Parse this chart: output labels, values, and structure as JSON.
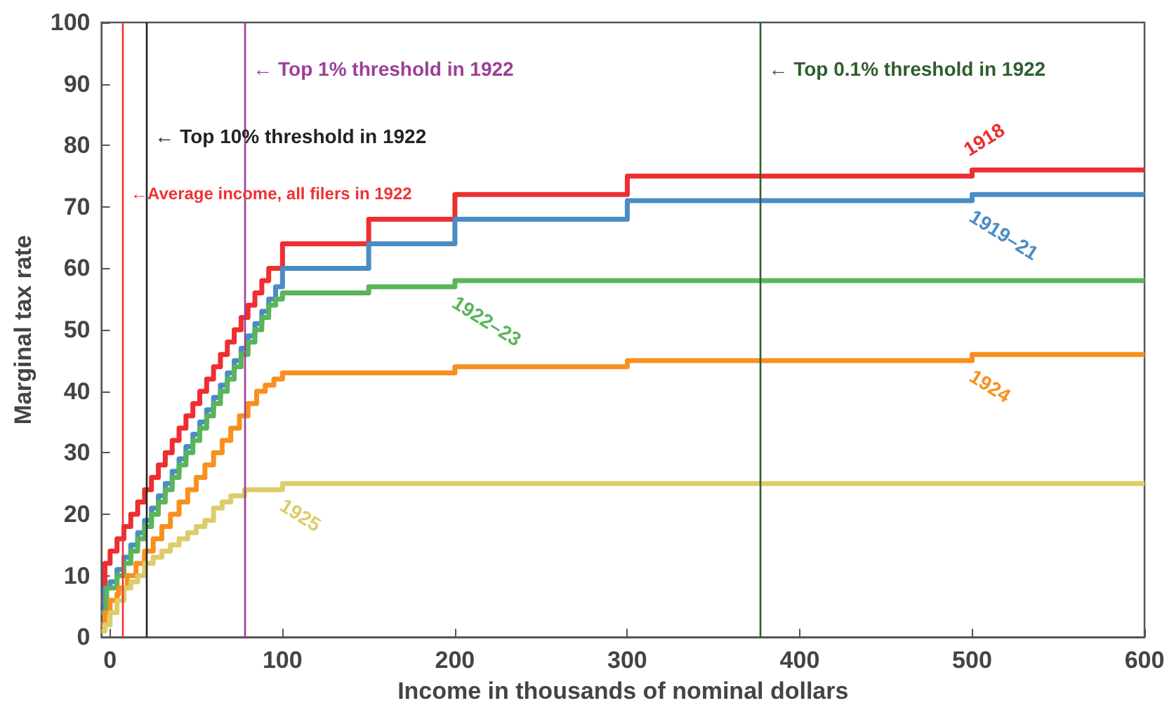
{
  "chart_data": {
    "type": "step",
    "xlabel": "Income in thousands of nominal dollars",
    "ylabel": "Marginal tax rate",
    "xlim": [
      -5,
      600
    ],
    "xticks": [
      0,
      100,
      200,
      300,
      400,
      500,
      600
    ],
    "ylim": [
      0,
      100
    ],
    "yticks": [
      0,
      10,
      20,
      30,
      40,
      50,
      60,
      70,
      80,
      90,
      100
    ],
    "grid": false,
    "line_style": "solid",
    "series": [
      {
        "name": "1918",
        "color": "#ee2e30",
        "x": [
          -5,
          -3,
          0,
          4,
          8,
          12,
          16,
          20,
          24,
          28,
          32,
          36,
          40,
          44,
          48,
          52,
          56,
          60,
          64,
          68,
          72,
          76,
          80,
          84,
          88,
          92,
          100,
          150,
          200,
          300,
          500,
          600
        ],
        "values": [
          6,
          12,
          14,
          16,
          18,
          20,
          22,
          24,
          26,
          28,
          30,
          32,
          34,
          36,
          38,
          40,
          42,
          44,
          46,
          48,
          50,
          52,
          54,
          56,
          58,
          60,
          64,
          68,
          72,
          75,
          76,
          76
        ]
      },
      {
        "name": "1919–21",
        "color": "#4a8cc4",
        "x": [
          -5,
          -3,
          0,
          4,
          8,
          12,
          16,
          20,
          24,
          28,
          32,
          36,
          40,
          44,
          48,
          52,
          56,
          60,
          64,
          68,
          72,
          76,
          80,
          84,
          88,
          92,
          96,
          100,
          150,
          200,
          300,
          500,
          600
        ],
        "values": [
          4,
          8,
          9,
          11,
          13,
          15,
          17,
          19,
          21,
          23,
          25,
          27,
          29,
          31,
          33,
          35,
          37,
          39,
          41,
          43,
          45,
          47,
          49,
          51,
          53,
          55,
          57,
          60,
          64,
          68,
          71,
          72,
          72
        ]
      },
      {
        "name": "1922–23",
        "color": "#5ab55a",
        "x": [
          -5,
          -2,
          0,
          4,
          8,
          12,
          16,
          20,
          24,
          28,
          32,
          36,
          40,
          44,
          48,
          52,
          56,
          60,
          64,
          68,
          72,
          76,
          80,
          84,
          88,
          92,
          96,
          100,
          150,
          200,
          600
        ],
        "values": [
          4,
          8,
          8,
          10,
          12,
          14,
          16,
          18,
          20,
          22,
          24,
          26,
          28,
          30,
          32,
          34,
          36,
          38,
          40,
          42,
          44,
          46,
          48,
          50,
          52,
          54,
          55,
          56,
          57,
          58,
          58
        ]
      },
      {
        "name": "1924",
        "color": "#f7901e",
        "x": [
          -5,
          -3,
          0,
          4,
          5,
          10,
          15,
          20,
          25,
          30,
          35,
          40,
          45,
          50,
          55,
          60,
          65,
          70,
          75,
          80,
          85,
          90,
          95,
          100,
          200,
          300,
          500,
          600
        ],
        "values": [
          2,
          4,
          6,
          7,
          8,
          10,
          12,
          14,
          16,
          18,
          20,
          22,
          24,
          26,
          28,
          30,
          32,
          34,
          36,
          38,
          40,
          41,
          42,
          43,
          44,
          45,
          46,
          46
        ]
      },
      {
        "name": "1925",
        "color": "#dccd6a",
        "x": [
          -5,
          -3,
          0,
          4,
          8,
          12,
          16,
          20,
          25,
          30,
          35,
          40,
          45,
          50,
          55,
          60,
          65,
          70,
          78,
          100,
          600
        ],
        "values": [
          1,
          2,
          4,
          6,
          8,
          9,
          10,
          12,
          13,
          14,
          15,
          16,
          17,
          18,
          19,
          21,
          22,
          23,
          24,
          25,
          25
        ]
      }
    ],
    "ref_lines": [
      {
        "axis": "x",
        "value": 7,
        "label": "←Average income, all filers in 1922",
        "color": "#ee3333"
      },
      {
        "axis": "x",
        "value": 21,
        "label": "← Top 10% threshold in 1922",
        "color": "#222222"
      },
      {
        "axis": "x",
        "value": 78,
        "label": "← Top 1% threshold in 1922",
        "color": "#9c3f98"
      },
      {
        "axis": "x",
        "value": 377,
        "label": "← Top 0.1% threshold in 1922",
        "color": "#2e5e2e"
      }
    ]
  }
}
